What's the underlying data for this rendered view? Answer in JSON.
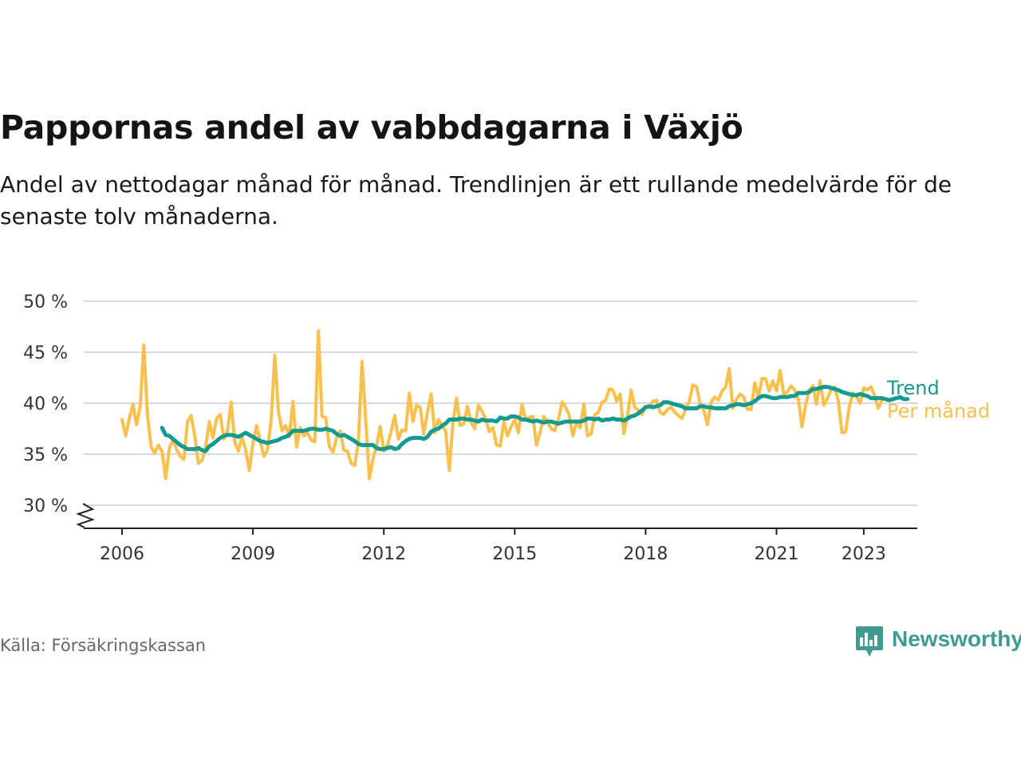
{
  "title": "Pappornas andel av vabbdagarna i Växjö",
  "subtitle": "Andel av nettodagar månad för månad. Trendlinjen är ett rullande medelvärde för de senaste tolv månaderna.",
  "source": "Källa: Försäkringskassan",
  "brand": {
    "name": "Newsworthy",
    "icon": "newsworthy-logo-icon",
    "color": "#3f9b8f"
  },
  "chart_data": {
    "type": "line",
    "x_start": "2006-01",
    "x_unit": "month",
    "ylim": [
      30,
      50
    ],
    "y_axis_break": true,
    "y_ticks": [
      30,
      35,
      40,
      45,
      50
    ],
    "y_tick_labels": [
      "30 %",
      "35 %",
      "40 %",
      "45 %",
      "50 %"
    ],
    "x_ticks": [
      2006,
      2009,
      2012,
      2015,
      2018,
      2021,
      2023
    ],
    "x_tick_labels": [
      "2006",
      "2009",
      "2012",
      "2015",
      "2018",
      "2021",
      "2023"
    ],
    "grid": true,
    "legend_placement": "right, at line ends",
    "series": [
      {
        "name": "Per månad",
        "color": "#f9c04e",
        "values": [
          38.4,
          36.8,
          38.5,
          39.9,
          37.9,
          39.7,
          45.7,
          38.8,
          35.7,
          35.1,
          35.9,
          35.3,
          32.6,
          35.6,
          36.4,
          35.5,
          34.8,
          34.5,
          38.2,
          38.8,
          36.8,
          34.1,
          34.4,
          35.7,
          38.2,
          36.6,
          38.5,
          38.9,
          36.5,
          37.3,
          40.1,
          36.2,
          35.3,
          36.7,
          35.4,
          33.4,
          36.1,
          37.8,
          36.3,
          34.8,
          35.4,
          38.3,
          44.7,
          39.2,
          37.3,
          37.8,
          36.7,
          40.2,
          35.7,
          37.6,
          36.8,
          37.1,
          36.4,
          36.2,
          47.1,
          38.7,
          38.6,
          35.8,
          35.2,
          36.6,
          37.3,
          35.4,
          35.3,
          34.1,
          33.9,
          36.2,
          44.1,
          38.5,
          32.6,
          34.5,
          35.8,
          37.7,
          35.3,
          35.9,
          37.2,
          38.8,
          36.5,
          37.4,
          37.3,
          41.0,
          38.2,
          39.8,
          39.6,
          37.0,
          39.1,
          40.9,
          37.1,
          38.4,
          37.8,
          37.3,
          33.4,
          38.1,
          40.5,
          37.8,
          38.0,
          39.7,
          38.1,
          37.5,
          39.8,
          39.2,
          38.5,
          37.2,
          37.6,
          35.9,
          35.8,
          38.2,
          36.8,
          37.7,
          38.4,
          37.1,
          39.9,
          38.4,
          38.6,
          38.7,
          35.9,
          37.2,
          38.7,
          38.2,
          37.5,
          37.3,
          38.4,
          40.1,
          39.6,
          38.8,
          36.8,
          38.1,
          37.6,
          39.9,
          36.8,
          37.0,
          38.9,
          39.1,
          40.1,
          40.3,
          41.4,
          41.3,
          40.2,
          40.9,
          37.0,
          38.7,
          41.3,
          39.6,
          39.3,
          38.9,
          39.7,
          39.6,
          40.2,
          40.3,
          39.1,
          38.9,
          39.4,
          39.6,
          39.1,
          38.8,
          38.5,
          39.4,
          40.2,
          41.8,
          41.6,
          39.9,
          39.3,
          37.9,
          40.1,
          40.6,
          40.3,
          41.2,
          41.6,
          43.4,
          39.5,
          40.4,
          40.9,
          40.6,
          39.4,
          39.4,
          42.0,
          40.6,
          42.4,
          42.4,
          41.2,
          42.2,
          41.2,
          43.2,
          40.8,
          41.1,
          41.7,
          41.3,
          40.4,
          37.7,
          39.8,
          41.3,
          41.7,
          39.9,
          42.2,
          39.8,
          40.5,
          41.3,
          41.6,
          40.2,
          37.1,
          37.2,
          39.6,
          41.0,
          40.6,
          40.0,
          41.5,
          41.3,
          41.6,
          40.7,
          39.5,
          40.3
        ]
      },
      {
        "name": "Trend",
        "color": "#149a8e",
        "start": "2006-12",
        "values": [
          37.6,
          36.9,
          36.8,
          36.5,
          36.2,
          35.9,
          35.7,
          35.5,
          35.5,
          35.5,
          35.6,
          35.4,
          35.3,
          35.8,
          36.0,
          36.3,
          36.6,
          36.8,
          36.9,
          36.9,
          36.8,
          36.7,
          36.9,
          37.1,
          36.9,
          36.7,
          36.5,
          36.3,
          36.2,
          36.1,
          36.2,
          36.3,
          36.4,
          36.6,
          36.7,
          36.9,
          37.3,
          37.3,
          37.3,
          37.3,
          37.4,
          37.5,
          37.5,
          37.4,
          37.4,
          37.5,
          37.4,
          37.3,
          37.0,
          36.8,
          36.9,
          36.7,
          36.5,
          36.3,
          36.0,
          35.9,
          35.9,
          35.9,
          35.9,
          35.6,
          35.5,
          35.5,
          35.6,
          35.7,
          35.5,
          35.6,
          36.0,
          36.3,
          36.5,
          36.6,
          36.6,
          36.6,
          36.5,
          36.7,
          37.2,
          37.4,
          37.5,
          37.8,
          38.0,
          38.4,
          38.4,
          38.4,
          38.5,
          38.5,
          38.4,
          38.4,
          38.3,
          38.2,
          38.4,
          38.3,
          38.3,
          38.3,
          38.2,
          38.6,
          38.5,
          38.5,
          38.7,
          38.7,
          38.6,
          38.4,
          38.4,
          38.3,
          38.2,
          38.3,
          38.2,
          38.1,
          38.2,
          38.2,
          38.1,
          38.0,
          38.1,
          38.2,
          38.2,
          38.2,
          38.2,
          38.2,
          38.3,
          38.5,
          38.5,
          38.4,
          38.5,
          38.3,
          38.4,
          38.4,
          38.5,
          38.4,
          38.4,
          38.3,
          38.5,
          38.7,
          38.8,
          39.0,
          39.3,
          39.6,
          39.7,
          39.6,
          39.7,
          39.8,
          40.1,
          40.1,
          40.0,
          39.9,
          39.8,
          39.7,
          39.5,
          39.5,
          39.5,
          39.5,
          39.7,
          39.7,
          39.6,
          39.6,
          39.5,
          39.5,
          39.5,
          39.5,
          39.7,
          39.8,
          39.9,
          39.9,
          39.8,
          39.9,
          40.0,
          40.2,
          40.5,
          40.7,
          40.7,
          40.6,
          40.5,
          40.5,
          40.6,
          40.6,
          40.6,
          40.7,
          40.7,
          41.0,
          41.0,
          41.0,
          41.1,
          41.4,
          41.4,
          41.5,
          41.6,
          41.6,
          41.5,
          41.4,
          41.3,
          41.1,
          41.0,
          40.9,
          40.8,
          40.8,
          40.9,
          40.8,
          40.7,
          40.5,
          40.5,
          40.5,
          40.5,
          40.4,
          40.3,
          40.4,
          40.5,
          40.6,
          40.4,
          40.4
        ]
      }
    ]
  }
}
